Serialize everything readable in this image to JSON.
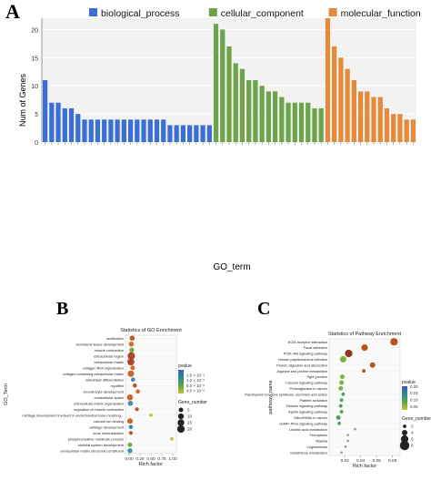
{
  "panels": {
    "A": "A",
    "B": "B",
    "C": "C"
  },
  "chart_data": [
    {
      "type": "bar",
      "panel": "A",
      "ylabel": "Num of Genes",
      "xlabel": "GO_term",
      "ylim": [
        0,
        22
      ],
      "yticks": [
        0,
        5,
        10,
        15,
        20
      ],
      "legend_position": "top",
      "series": [
        {
          "name": "biological_process",
          "color": "#3b6fd1",
          "values": [
            11,
            7,
            7,
            6,
            6,
            5,
            4,
            4,
            4,
            4,
            4,
            4,
            4,
            4,
            4,
            4,
            4,
            4,
            4,
            3,
            3,
            3,
            3,
            3,
            3,
            3
          ]
        },
        {
          "name": "cellular_component",
          "color": "#6da34a",
          "values": [
            21,
            20,
            17,
            14,
            13,
            11,
            11,
            10,
            9,
            9,
            8,
            7,
            7,
            7,
            7,
            6,
            6
          ]
        },
        {
          "name": "molecular_function",
          "color": "#e58a3a",
          "values": [
            22,
            17,
            15,
            13,
            11,
            9,
            9,
            8,
            8,
            6,
            5,
            5,
            4,
            4
          ]
        }
      ]
    },
    {
      "type": "scatter",
      "panel": "B",
      "title": "Statistics of GO Enrichment",
      "xlabel": "Rich factor",
      "ylabel": "GO_Term",
      "xlim": [
        0,
        1.0
      ],
      "xticks": [
        "0.00",
        "0.25",
        "0.50",
        "0.75",
        "1.00"
      ],
      "categories": [
        "ossification",
        "biomineral tissue development",
        "muscle contraction",
        "extracellular region",
        "extracellular matrix",
        "collagen fibril organization",
        "collagen-containing extracellular matrix",
        "osteoblast differentiation",
        "myofibril",
        "chondrocyte development",
        "extracellular space",
        "extracellular matrix organization",
        "regulation of muscle contraction",
        "cartilage development involved in endochondral bone morphog...",
        "calcium ion binding",
        "cartilage development",
        "bone mineralization",
        "phosphocreatine metabolic process",
        "skeletal system development",
        "extracellular matrix structural constituent"
      ],
      "rich_factor": [
        0.07,
        0.05,
        0.06,
        0.05,
        0.04,
        0.08,
        0.04,
        0.09,
        0.13,
        0.2,
        0.02,
        0.03,
        0.18,
        0.5,
        0.02,
        0.04,
        0.04,
        0.98,
        0.02,
        0.02
      ],
      "gene_number": [
        7,
        7,
        6,
        20,
        17,
        5,
        13,
        4,
        4,
        4,
        11,
        7,
        3,
        2,
        9,
        4,
        3,
        2,
        5,
        6
      ],
      "legend_color_title": "pvalue",
      "legend_color_labels": [
        "1.6 × 10⁻⁵",
        "1.2 × 10⁻⁵",
        "8.0 × 10⁻⁶",
        "4.0 × 10⁻⁶"
      ],
      "legend_size_title": "Gene_number",
      "legend_size_labels": [
        "5",
        "10",
        "15",
        "20"
      ]
    },
    {
      "type": "scatter",
      "panel": "C",
      "title": "Statistics of Pathway Enrichment",
      "xlabel": "Rich factor",
      "ylabel": "pathway_name",
      "xlim": [
        0.005,
        0.085
      ],
      "xticks": [
        "0.02",
        "0.04",
        "0.06",
        "0.08"
      ],
      "categories": [
        "ECM-receptor interaction",
        "Focal adhesion",
        "PI3K–Akt signaling pathway",
        "Human papillomavirus infection",
        "Protein digestion and absorption",
        "Arginine and proline metabolism",
        "Tight junction",
        "Calcium signaling pathway",
        "Proteoglycans in cancer",
        "Parathyroid hormone synthesis, secretion and action",
        "Platelet activation",
        "Relaxin signaling pathway",
        "Apelin signaling pathway",
        "MicroRNAs in cancer",
        "cGMP–PKG signaling pathway",
        "Linoleic acid metabolism",
        "Ferroptosis",
        "Malaria",
        "Legionellosis",
        "Glutathione metabolism"
      ],
      "rich_factor": [
        0.082,
        0.045,
        0.025,
        0.018,
        0.055,
        0.044,
        0.017,
        0.016,
        0.015,
        0.018,
        0.016,
        0.015,
        0.016,
        0.012,
        0.013,
        0.033,
        0.024,
        0.024,
        0.021,
        0.016
      ],
      "gene_number": [
        6,
        5,
        6,
        5,
        4,
        2,
        3,
        3,
        3,
        2,
        2,
        2,
        2,
        3,
        2,
        1,
        1,
        1,
        1,
        1
      ],
      "legend_color_title": "pvalue",
      "legend_color_labels": [
        "0.15",
        "0.10",
        "0.05"
      ],
      "legend_color_extra": "0.20",
      "legend_size_title": "Gene_number",
      "legend_size_labels": [
        "2",
        "4",
        "6",
        "8"
      ]
    }
  ]
}
